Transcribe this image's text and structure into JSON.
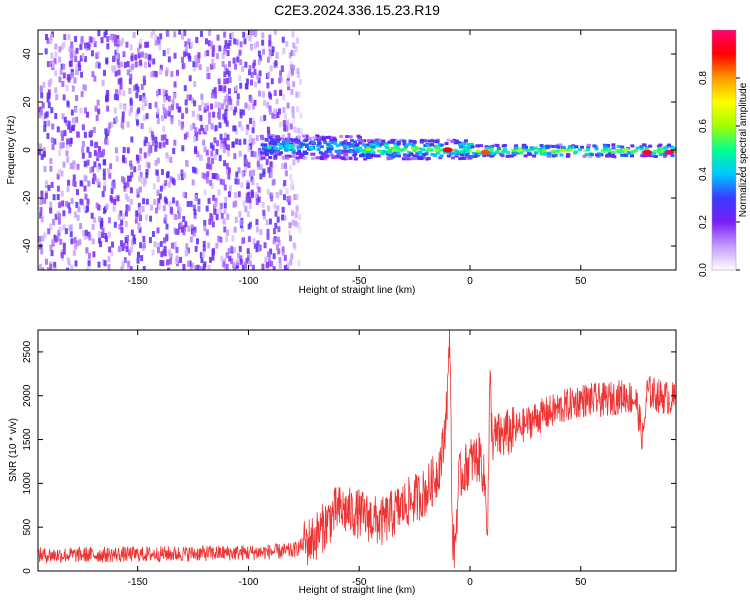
{
  "figure": {
    "title": "C2E3.2024.336.15.23.R19"
  },
  "chart_data": [
    {
      "type": "heatmap",
      "title": "",
      "xlabel": "Height of straight line (km)",
      "ylabel": "Frequency (Hz)",
      "xlim": [
        -195,
        93
      ],
      "ylim": [
        -50,
        50
      ],
      "xticks": [
        -150,
        -100,
        -50,
        0,
        50
      ],
      "yticks": [
        -40,
        -20,
        0,
        20,
        40
      ],
      "colorbar": {
        "label": "Normalized spectral amplitude",
        "range": [
          0,
          1
        ],
        "ticks": [
          0.0,
          0.2,
          0.4,
          0.6,
          0.8
        ],
        "colors": [
          "#ffffff",
          "#c39bff",
          "#7a1ff5",
          "#3a3aff",
          "#00c8ff",
          "#00ff90",
          "#a0ff00",
          "#ffff00",
          "#ff9900",
          "#ff0000",
          "#ff0070"
        ]
      },
      "regions": [
        {
          "x": [
            -195,
            -75
          ],
          "y": [
            -50,
            50
          ],
          "level": 0.18,
          "pattern": "broadband noise"
        },
        {
          "x": [
            -95,
            -50
          ],
          "y": [
            -4,
            6
          ],
          "level": 0.4,
          "pattern": "ridge near 0 Hz"
        },
        {
          "x": [
            -50,
            0
          ],
          "y": [
            -4,
            4
          ],
          "level": 0.55,
          "pattern": "ridge near 0 Hz"
        },
        {
          "x": [
            0,
            93
          ],
          "y": [
            -3,
            2
          ],
          "level": 0.6,
          "pattern": "ridge near 0 Hz"
        }
      ],
      "ridge_peaks": [
        {
          "x": -10,
          "y": 0,
          "level": 0.9
        },
        {
          "x": 7,
          "y": -1,
          "level": 0.85
        },
        {
          "x": 80,
          "y": -1,
          "level": 0.95
        },
        {
          "x": 90,
          "y": -1,
          "level": 1.0
        }
      ]
    },
    {
      "type": "line",
      "title": "",
      "xlabel": "Height of straight line (km)",
      "ylabel": "SNR (10 * v/v)",
      "xlim": [
        -195,
        93
      ],
      "ylim": [
        0,
        2750
      ],
      "xticks": [
        -150,
        -100,
        -50,
        0,
        50
      ],
      "yticks": [
        0,
        500,
        1000,
        1500,
        2000,
        2500
      ],
      "series": [
        {
          "color": "#ee3333",
          "x": [
            -195,
            -150,
            -100,
            -80,
            -70,
            -60,
            -50,
            -40,
            -30,
            -20,
            -15,
            -12,
            -10,
            -9,
            -8,
            -7,
            -5,
            0,
            5,
            7,
            8,
            9,
            10,
            20,
            30,
            40,
            50,
            60,
            70,
            75,
            78,
            80,
            85,
            93
          ],
          "y": [
            180,
            190,
            210,
            230,
            380,
            700,
            650,
            550,
            750,
            900,
            1100,
            1400,
            2100,
            2700,
            400,
            200,
            1050,
            1250,
            1300,
            900,
            500,
            2200,
            1500,
            1600,
            1750,
            1850,
            1950,
            1950,
            2000,
            1950,
            1500,
            2050,
            2000,
            1950
          ],
          "noise_amplitude": 180
        }
      ]
    }
  ]
}
